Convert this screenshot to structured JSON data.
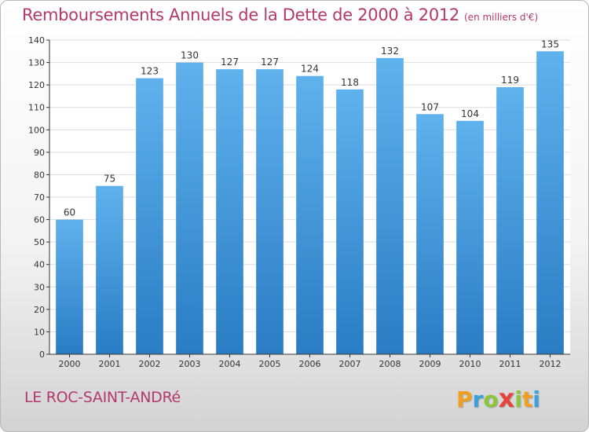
{
  "chart_data": {
    "type": "bar",
    "title": "Remboursements Annuels de la Dette de 2000 à 2012",
    "unit_note": "(en milliers d'€)",
    "categories": [
      "2000",
      "2001",
      "2002",
      "2003",
      "2004",
      "2005",
      "2006",
      "2007",
      "2008",
      "2009",
      "2010",
      "2011",
      "2012"
    ],
    "values": [
      60,
      75,
      123,
      130,
      127,
      127,
      124,
      118,
      132,
      107,
      104,
      119,
      135
    ],
    "ylim": [
      0,
      140
    ],
    "yticks": [
      0,
      10,
      20,
      30,
      40,
      50,
      60,
      70,
      80,
      90,
      100,
      110,
      120,
      130,
      140
    ],
    "grid": true,
    "bar_color": "#3a8fd6"
  },
  "commune": "LE ROC-SAINT-ANDRé",
  "logo": {
    "letters": [
      "P",
      "r",
      "o",
      "x",
      "i",
      "t",
      "i"
    ],
    "colors": [
      "#f0a020",
      "#3aa0e0",
      "#8cc63f",
      "#e8423c",
      "#8cc63f",
      "#f0a020",
      "#3aa0e0"
    ]
  },
  "colors": {
    "title": "#b23a6a",
    "axis": "#333333",
    "grid": "#dddddd"
  }
}
